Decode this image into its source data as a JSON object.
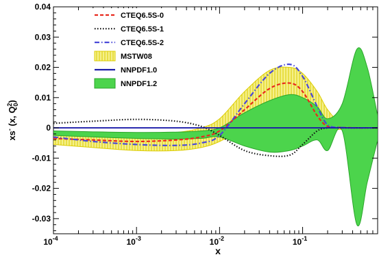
{
  "chart_data": {
    "type": "line",
    "xlabel": "x",
    "xscale": "log",
    "xlim": [
      0.0001,
      0.8
    ],
    "ylim": [
      -0.035,
      0.04
    ],
    "x_ticks": [
      {
        "value": 0.0001,
        "base": "10",
        "exp": "-4"
      },
      {
        "value": 0.001,
        "base": "10",
        "exp": "-3"
      },
      {
        "value": 0.01,
        "base": "10",
        "exp": "-2"
      },
      {
        "value": 0.1,
        "base": "10",
        "exp": "-1"
      }
    ],
    "y_ticks": [
      {
        "value": 0.04,
        "label": "0.04"
      },
      {
        "value": 0.03,
        "label": "0.03"
      },
      {
        "value": 0.02,
        "label": "0.02"
      },
      {
        "value": 0.01,
        "label": "0.01"
      },
      {
        "value": 0,
        "label": "0"
      },
      {
        "value": -0.01,
        "label": "-0.01"
      },
      {
        "value": -0.02,
        "label": "-0.02"
      },
      {
        "value": -0.03,
        "label": "-0.03"
      }
    ],
    "ylabel_parts": {
      "pre": "xs",
      "sup1": "-",
      "mid": " (x, Q",
      "sup2": "2",
      "sub2": "0",
      "post": ")"
    },
    "legend_position": "top-left",
    "x": [
      0.0001,
      0.0003,
      0.001,
      0.003,
      0.006,
      0.01,
      0.02,
      0.04,
      0.07,
      0.1,
      0.15,
      0.2,
      0.3,
      0.45,
      0.6,
      0.8
    ],
    "series": [
      {
        "name": "CTEQ6.5S-0",
        "style": "dashed",
        "color": "#e8281c",
        "values": [
          -0.0035,
          -0.004,
          -0.0045,
          -0.004,
          -0.003,
          -0.001,
          0.006,
          0.013,
          0.0148,
          0.012,
          0.004,
          0.0005,
          0.0001,
          0,
          0,
          0
        ]
      },
      {
        "name": "CTEQ6.5S-1",
        "style": "dotted",
        "color": "#111111",
        "values": [
          0.0015,
          0.0022,
          0.0028,
          0.0022,
          0.0005,
          -0.0025,
          -0.0075,
          -0.0092,
          -0.009,
          -0.0055,
          -0.001,
          0,
          0,
          0,
          0,
          0
        ]
      },
      {
        "name": "CTEQ6.5S-2",
        "style": "dashdot",
        "color": "#4848d8",
        "values": [
          -0.003,
          -0.0045,
          -0.0055,
          -0.0058,
          -0.005,
          -0.0025,
          0.008,
          0.018,
          0.021,
          0.017,
          0.007,
          0.001,
          0.0001,
          0,
          0,
          0
        ]
      },
      {
        "name": "MSTW08",
        "type": "band",
        "fill": "#f5f08a",
        "stroke": "#dccc00",
        "upper": [
          -0.0018,
          -0.002,
          -0.0022,
          -0.0015,
          0,
          0.003,
          0.012,
          0.019,
          0.02,
          0.018,
          0.012,
          0.006,
          0.001,
          0.0003,
          0,
          0
        ],
        "lower": [
          -0.0055,
          -0.0065,
          -0.0075,
          -0.0075,
          -0.0065,
          -0.0045,
          0,
          0.004,
          0.0065,
          0.005,
          0.001,
          -0.0005,
          -0.0005,
          -0.0002,
          0,
          0
        ]
      },
      {
        "name": "NNPDF1.0",
        "style": "solid",
        "color": "#1a1aa8",
        "values": [
          0,
          0,
          0,
          0,
          0,
          0,
          0,
          0,
          0,
          0,
          0,
          0,
          0,
          0,
          0,
          0
        ]
      },
      {
        "name": "NNPDF1.2",
        "type": "band",
        "fill": "#4cd44c",
        "stroke": "#2aa52a",
        "upper": [
          -0.001,
          -0.0013,
          -0.0015,
          -0.0014,
          -0.001,
          0,
          0.005,
          0.009,
          0.011,
          0.01,
          0.007,
          0.003,
          0.008,
          0.026,
          0.02,
          0.004
        ],
        "lower": [
          -0.0025,
          -0.003,
          -0.0035,
          -0.0037,
          -0.0035,
          -0.003,
          -0.006,
          -0.008,
          -0.0075,
          -0.006,
          -0.004,
          -0.0075,
          -0.001,
          -0.032,
          -0.018,
          -0.004
        ]
      }
    ]
  }
}
